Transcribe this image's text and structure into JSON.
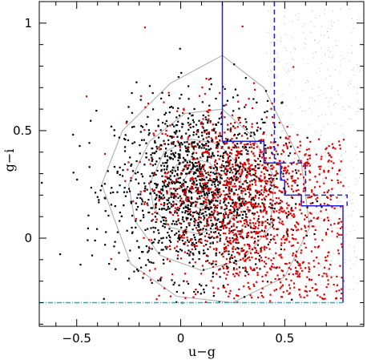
{
  "chart_data": {
    "type": "scatter",
    "title": "",
    "xlabel": "u−g",
    "ylabel": "g−i",
    "xlim": [
      -0.68,
      0.88
    ],
    "ylim": [
      -0.41,
      1.1
    ],
    "xticks": [
      -0.5,
      0,
      0.5
    ],
    "xtick_labels": [
      "−0.5",
      "0",
      "0.5"
    ],
    "yticks": [
      0,
      0.5,
      1
    ],
    "ytick_labels": [
      "0",
      "0.5",
      "1"
    ],
    "grid": false,
    "colors": {
      "black_points": "#000000",
      "red_points": "#e00000",
      "contours": "#a8a8a8",
      "solid_boundary": "#1f1fd6",
      "dashed_boundary": "#1f1fd6",
      "cutoff_line": "#00b4e0"
    },
    "series": [
      {
        "kind": "contour",
        "level": 1,
        "points": [
          [
            -0.38,
            0.25
          ],
          [
            -0.28,
            0.5
          ],
          [
            -0.05,
            0.72
          ],
          [
            0.2,
            0.85
          ],
          [
            0.4,
            0.7
          ],
          [
            0.58,
            0.35
          ],
          [
            0.62,
            0.05
          ],
          [
            0.5,
            -0.18
          ],
          [
            0.25,
            -0.3
          ],
          [
            -0.02,
            -0.27
          ],
          [
            -0.24,
            -0.12
          ]
        ]
      },
      {
        "kind": "contour",
        "level": 2,
        "points": [
          [
            -0.25,
            0.25
          ],
          [
            -0.15,
            0.45
          ],
          [
            0.02,
            0.58
          ],
          [
            0.2,
            0.6
          ],
          [
            0.35,
            0.47
          ],
          [
            0.45,
            0.28
          ],
          [
            0.43,
            0.05
          ],
          [
            0.3,
            -0.1
          ],
          [
            0.1,
            -0.15
          ],
          [
            -0.1,
            -0.08
          ],
          [
            -0.22,
            0.08
          ]
        ]
      },
      {
        "kind": "contour",
        "level": 3,
        "points": [
          [
            -0.15,
            0.25
          ],
          [
            -0.08,
            0.4
          ],
          [
            0.05,
            0.46
          ],
          [
            0.18,
            0.44
          ],
          [
            0.28,
            0.34
          ],
          [
            0.3,
            0.18
          ],
          [
            0.22,
            0.06
          ],
          [
            0.08,
            0.02
          ],
          [
            -0.05,
            0.05
          ],
          [
            -0.13,
            0.14
          ]
        ]
      },
      {
        "kind": "contour",
        "level": 4,
        "points": [
          [
            -0.06,
            0.26
          ],
          [
            -0.02,
            0.34
          ],
          [
            0.06,
            0.37
          ],
          [
            0.14,
            0.35
          ],
          [
            0.19,
            0.28
          ],
          [
            0.17,
            0.18
          ],
          [
            0.09,
            0.14
          ],
          [
            0.0,
            0.16
          ],
          [
            -0.05,
            0.2
          ]
        ]
      },
      {
        "kind": "contour",
        "level": 5,
        "points": [
          [
            0.01,
            0.26
          ],
          [
            0.04,
            0.31
          ],
          [
            0.09,
            0.31
          ],
          [
            0.12,
            0.27
          ],
          [
            0.1,
            0.22
          ],
          [
            0.05,
            0.21
          ],
          [
            0.02,
            0.23
          ]
        ]
      },
      {
        "kind": "boundary",
        "style": "solid",
        "points": [
          [
            0.2,
            1.12
          ],
          [
            0.2,
            0.45
          ],
          [
            0.4,
            0.45
          ],
          [
            0.4,
            0.35
          ],
          [
            0.48,
            0.35
          ],
          [
            0.48,
            0.27
          ],
          [
            0.5,
            0.27
          ],
          [
            0.5,
            0.2
          ],
          [
            0.58,
            0.2
          ],
          [
            0.58,
            0.15
          ],
          [
            0.78,
            0.15
          ],
          [
            0.78,
            -0.3
          ]
        ]
      },
      {
        "kind": "boundary",
        "style": "dashed",
        "points": [
          [
            0.45,
            1.12
          ],
          [
            0.45,
            0.35
          ],
          [
            0.6,
            0.35
          ],
          [
            0.6,
            0.2
          ],
          [
            0.8,
            0.2
          ],
          [
            0.8,
            0.15
          ]
        ]
      },
      {
        "kind": "cutoff",
        "style": "dash-dot",
        "y": -0.3,
        "x": [
          -0.68,
          0.78
        ]
      }
    ]
  }
}
